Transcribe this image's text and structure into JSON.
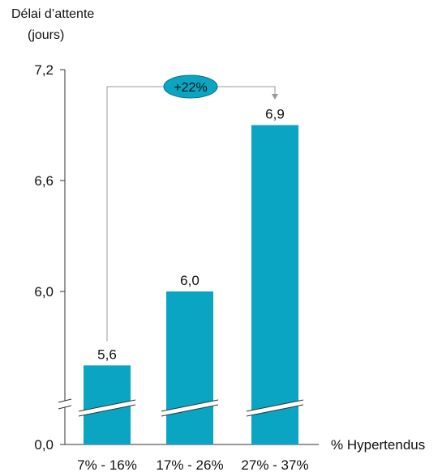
{
  "chart_data": {
    "type": "bar",
    "y_axis_title": [
      "Délai d’attente",
      "(jours)"
    ],
    "x_axis_title": "% Hypertendus",
    "categories": [
      "7% - 16%",
      "17% - 26%",
      "27% - 37%"
    ],
    "values": [
      5.6,
      6.0,
      6.9
    ],
    "value_labels": [
      "5,6",
      "6,0",
      "6,9"
    ],
    "y_ticks": [
      {
        "value": 0.0,
        "label": "0,0"
      },
      {
        "value": 6.0,
        "label": "6,0"
      },
      {
        "value": 6.6,
        "label": "6,6"
      },
      {
        "value": 7.2,
        "label": "7,2"
      }
    ],
    "axis_break": true,
    "bar_color": "#0aa5c2",
    "callout": {
      "from_category": 0,
      "to_category": 2,
      "label": "+22%",
      "fill": "#0aa5c2"
    }
  }
}
